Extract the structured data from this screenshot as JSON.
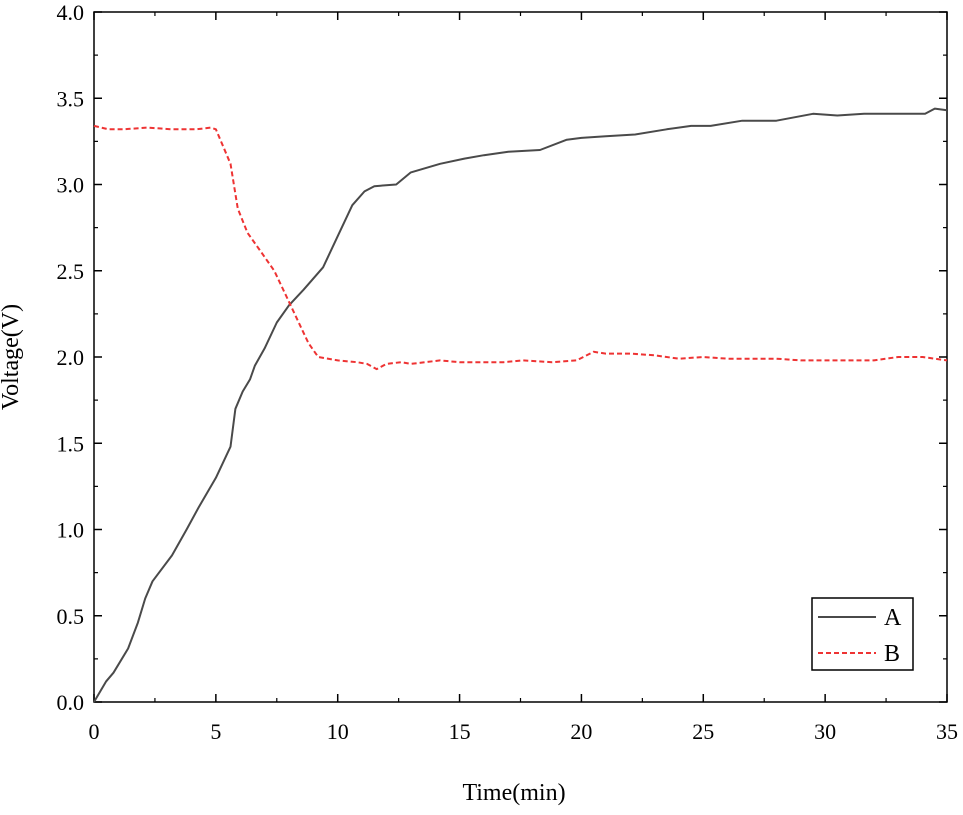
{
  "chart_data": {
    "type": "line",
    "title": "",
    "xlabel": "Time(min)",
    "ylabel": "Voltage(V)",
    "xlim": [
      0,
      35
    ],
    "ylim": [
      0,
      4.0
    ],
    "x_ticks": [
      0,
      5,
      10,
      15,
      20,
      25,
      30,
      35
    ],
    "x_tick_labels": [
      "0",
      "5",
      "10",
      "15",
      "20",
      "25",
      "30",
      "35"
    ],
    "y_ticks": [
      0,
      0.5,
      1.0,
      1.5,
      2.0,
      2.5,
      3.0,
      3.5,
      4.0
    ],
    "y_tick_labels": [
      "0.0",
      "0.5",
      "1.0",
      "1.5",
      "2.0",
      "2.5",
      "3.0",
      "3.5",
      "4.0"
    ],
    "grid": false,
    "legend_position": "bottom-right",
    "series": [
      {
        "name": "A",
        "color": "#4a4a4a",
        "style": "solid",
        "points": [
          [
            0,
            0
          ],
          [
            0.5,
            0.12
          ],
          [
            0.8,
            0.17
          ],
          [
            1.4,
            0.31
          ],
          [
            1.8,
            0.46
          ],
          [
            2.1,
            0.6
          ],
          [
            2.4,
            0.7
          ],
          [
            3.2,
            0.85
          ],
          [
            3.8,
            1.0
          ],
          [
            4.3,
            1.13
          ],
          [
            5.0,
            1.3
          ],
          [
            5.6,
            1.48
          ],
          [
            5.8,
            1.7
          ],
          [
            6.1,
            1.8
          ],
          [
            6.4,
            1.87
          ],
          [
            6.6,
            1.95
          ],
          [
            7.0,
            2.05
          ],
          [
            7.5,
            2.2
          ],
          [
            8.0,
            2.3
          ],
          [
            8.6,
            2.39
          ],
          [
            9.4,
            2.52
          ],
          [
            10.0,
            2.7
          ],
          [
            10.6,
            2.88
          ],
          [
            11.1,
            2.96
          ],
          [
            11.5,
            2.99
          ],
          [
            12.4,
            3.0
          ],
          [
            13.0,
            3.07
          ],
          [
            14.2,
            3.12
          ],
          [
            15.2,
            3.15
          ],
          [
            16.0,
            3.17
          ],
          [
            17.0,
            3.19
          ],
          [
            18.3,
            3.2
          ],
          [
            19.4,
            3.26
          ],
          [
            20.0,
            3.27
          ],
          [
            21.0,
            3.28
          ],
          [
            22.2,
            3.29
          ],
          [
            23.5,
            3.32
          ],
          [
            24.5,
            3.34
          ],
          [
            25.3,
            3.34
          ],
          [
            26.6,
            3.37
          ],
          [
            27.0,
            3.37
          ],
          [
            28.0,
            3.37
          ],
          [
            29.5,
            3.41
          ],
          [
            30.5,
            3.4
          ],
          [
            31.6,
            3.41
          ],
          [
            32.5,
            3.41
          ],
          [
            33.5,
            3.41
          ],
          [
            34.1,
            3.41
          ],
          [
            34.5,
            3.44
          ],
          [
            35,
            3.43
          ]
        ]
      },
      {
        "name": "B",
        "color": "#ee3333",
        "style": "dashed",
        "points": [
          [
            0,
            3.34
          ],
          [
            0.6,
            3.32
          ],
          [
            1.2,
            3.32
          ],
          [
            2.2,
            3.33
          ],
          [
            3.2,
            3.32
          ],
          [
            4.2,
            3.32
          ],
          [
            4.8,
            3.33
          ],
          [
            5.0,
            3.32
          ],
          [
            5.3,
            3.22
          ],
          [
            5.6,
            3.12
          ],
          [
            5.9,
            2.86
          ],
          [
            6.3,
            2.72
          ],
          [
            6.8,
            2.62
          ],
          [
            7.4,
            2.5
          ],
          [
            7.8,
            2.38
          ],
          [
            8.4,
            2.2
          ],
          [
            8.8,
            2.08
          ],
          [
            9.2,
            2.0
          ],
          [
            10.0,
            1.98
          ],
          [
            10.8,
            1.97
          ],
          [
            11.2,
            1.96
          ],
          [
            11.6,
            1.93
          ],
          [
            12.0,
            1.96
          ],
          [
            12.6,
            1.97
          ],
          [
            13.0,
            1.96
          ],
          [
            14.2,
            1.98
          ],
          [
            15.0,
            1.97
          ],
          [
            16.8,
            1.97
          ],
          [
            17.6,
            1.98
          ],
          [
            18.8,
            1.97
          ],
          [
            19.8,
            1.98
          ],
          [
            20.5,
            2.03
          ],
          [
            21.0,
            2.02
          ],
          [
            22.0,
            2.02
          ],
          [
            23.0,
            2.01
          ],
          [
            24.0,
            1.99
          ],
          [
            25.0,
            2.0
          ],
          [
            26.0,
            1.99
          ],
          [
            27.0,
            1.99
          ],
          [
            28.0,
            1.99
          ],
          [
            29.0,
            1.98
          ],
          [
            30.0,
            1.98
          ],
          [
            31.0,
            1.98
          ],
          [
            32.0,
            1.98
          ],
          [
            33.0,
            2.0
          ],
          [
            34.0,
            2.0
          ],
          [
            35,
            1.98
          ]
        ]
      }
    ]
  }
}
